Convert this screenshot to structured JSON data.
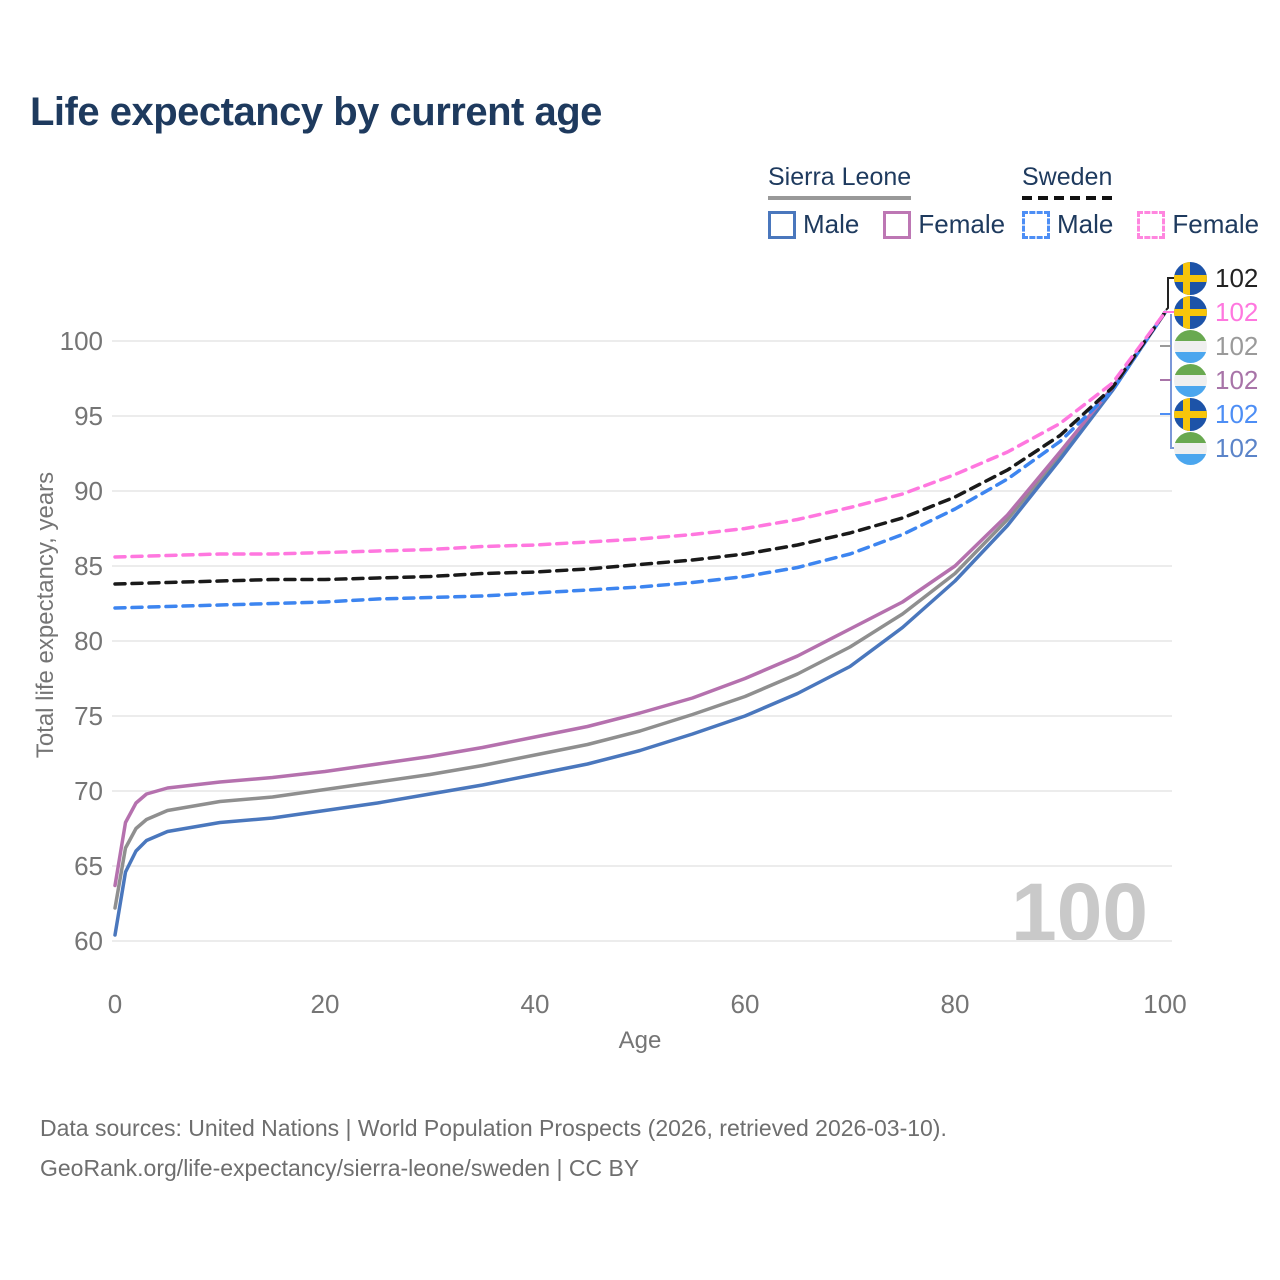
{
  "header": {
    "title": "Life expectancy by current age"
  },
  "legend": {
    "groups": [
      {
        "name": "Sierra Leone",
        "line_style": "solid",
        "line_color": "#999999",
        "items": [
          {
            "label": "Male",
            "color": "#4a77bd",
            "dashed": false
          },
          {
            "label": "Female",
            "color": "#bd77b4",
            "dashed": false
          }
        ]
      },
      {
        "name": "Sweden",
        "line_style": "dashed",
        "line_color": "#111111",
        "items": [
          {
            "label": "Male",
            "color": "#4d8ef5",
            "dashed": true
          },
          {
            "label": "Female",
            "color": "#ff86df",
            "dashed": true
          }
        ]
      }
    ]
  },
  "chart_data": {
    "type": "line",
    "title": "Life expectancy by current age",
    "xlabel": "Age",
    "ylabel": "Total life expectancy, years",
    "xlim": [
      0,
      100
    ],
    "ylim": [
      60,
      102
    ],
    "xticks": [
      0,
      20,
      40,
      60,
      80,
      100
    ],
    "yticks": [
      60,
      65,
      70,
      75,
      80,
      85,
      90,
      95,
      100
    ],
    "grid": "horizontal",
    "legend_position": "top-right",
    "series": [
      {
        "id": "sierra-leone-all",
        "name": "Sierra Leone (both sexes)",
        "style": "solid",
        "color": "#8f8f8f",
        "x": [
          0,
          1,
          2,
          3,
          4,
          5,
          10,
          15,
          20,
          25,
          30,
          35,
          40,
          45,
          50,
          55,
          60,
          65,
          70,
          75,
          80,
          85,
          90,
          95,
          100
        ],
        "values": [
          62.2,
          66.2,
          67.5,
          68.1,
          68.4,
          68.7,
          69.3,
          69.6,
          70.1,
          70.6,
          71.1,
          71.7,
          72.4,
          73.1,
          74.0,
          75.1,
          76.3,
          77.8,
          79.6,
          81.8,
          84.5,
          88.1,
          92.4,
          96.8,
          101.9
        ]
      },
      {
        "id": "sierra-leone-male",
        "name": "Sierra Leone Male",
        "style": "solid",
        "color": "#4a77bd",
        "x": [
          0,
          1,
          2,
          3,
          4,
          5,
          10,
          15,
          20,
          25,
          30,
          35,
          40,
          45,
          50,
          55,
          60,
          65,
          70,
          75,
          80,
          85,
          90,
          95,
          100
        ],
        "values": [
          60.4,
          64.6,
          66.0,
          66.7,
          67.0,
          67.3,
          67.9,
          68.2,
          68.7,
          69.2,
          69.8,
          70.4,
          71.1,
          71.8,
          72.7,
          73.8,
          75.0,
          76.5,
          78.3,
          80.9,
          84.0,
          87.7,
          92.1,
          96.7,
          101.9
        ]
      },
      {
        "id": "sierra-leone-female",
        "name": "Sierra Leone Female",
        "style": "solid",
        "color": "#b571ae",
        "x": [
          0,
          1,
          2,
          3,
          4,
          5,
          10,
          15,
          20,
          25,
          30,
          35,
          40,
          45,
          50,
          55,
          60,
          65,
          70,
          75,
          80,
          85,
          90,
          95,
          100
        ],
        "values": [
          63.7,
          67.9,
          69.2,
          69.8,
          70.0,
          70.2,
          70.6,
          70.9,
          71.3,
          71.8,
          72.3,
          72.9,
          73.6,
          74.3,
          75.2,
          76.2,
          77.5,
          79.0,
          80.8,
          82.6,
          85.0,
          88.4,
          92.6,
          96.9,
          101.9
        ]
      },
      {
        "id": "sweden-male",
        "name": "Sweden Male",
        "style": "dashed",
        "color": "#3d85f0",
        "x": [
          0,
          5,
          10,
          15,
          20,
          25,
          30,
          35,
          40,
          45,
          50,
          55,
          60,
          65,
          70,
          75,
          80,
          85,
          90,
          95,
          100
        ],
        "values": [
          82.2,
          82.3,
          82.4,
          82.5,
          82.6,
          82.8,
          82.9,
          83.0,
          83.2,
          83.4,
          83.6,
          83.9,
          84.3,
          84.9,
          85.8,
          87.1,
          88.8,
          90.8,
          93.3,
          96.7,
          101.9
        ]
      },
      {
        "id": "sweden-all",
        "name": "Sweden (both sexes)",
        "style": "dashed",
        "color": "#1a1a1a",
        "x": [
          0,
          5,
          10,
          15,
          20,
          25,
          30,
          35,
          40,
          45,
          50,
          55,
          60,
          65,
          70,
          75,
          80,
          85,
          90,
          95,
          100
        ],
        "values": [
          83.8,
          83.9,
          84.0,
          84.1,
          84.1,
          84.2,
          84.3,
          84.5,
          84.6,
          84.8,
          85.1,
          85.4,
          85.8,
          86.4,
          87.2,
          88.2,
          89.6,
          91.4,
          93.7,
          96.9,
          101.9
        ]
      },
      {
        "id": "sweden-female",
        "name": "Sweden Female",
        "style": "dashed",
        "color": "#ff77df",
        "x": [
          0,
          5,
          10,
          15,
          20,
          25,
          30,
          35,
          40,
          45,
          50,
          55,
          60,
          65,
          70,
          75,
          80,
          85,
          90,
          95,
          100
        ],
        "values": [
          85.6,
          85.7,
          85.8,
          85.8,
          85.9,
          86.0,
          86.1,
          86.3,
          86.4,
          86.6,
          86.8,
          87.1,
          87.5,
          88.1,
          88.9,
          89.8,
          91.1,
          92.6,
          94.5,
          97.2,
          101.9
        ]
      }
    ]
  },
  "end_labels": [
    {
      "series": "sweden-all",
      "flag": "sweden",
      "color": "#222222",
      "value": "102"
    },
    {
      "series": "sweden-female",
      "flag": "sweden",
      "color": "#ff77df",
      "value": "102"
    },
    {
      "series": "sierra-leone-all",
      "flag": "sierra-leone",
      "color": "#9a9a9a",
      "value": "102"
    },
    {
      "series": "sierra-leone-female",
      "flag": "sierra-leone",
      "color": "#a874a8",
      "value": "102"
    },
    {
      "series": "sweden-male",
      "flag": "sweden",
      "color": "#4d8ef5",
      "value": "102"
    },
    {
      "series": "sierra-leone-male",
      "flag": "sierra-leone",
      "color": "#5b84c9",
      "value": "102"
    }
  ],
  "annotations": {
    "age_counter": "100"
  },
  "footer": {
    "line1": "Data sources: United Nations | World Population Prospects (2026, retrieved 2026-03-10).",
    "line2": "GeoRank.org/life-expectancy/sierra-leone/sweden | CC BY"
  }
}
